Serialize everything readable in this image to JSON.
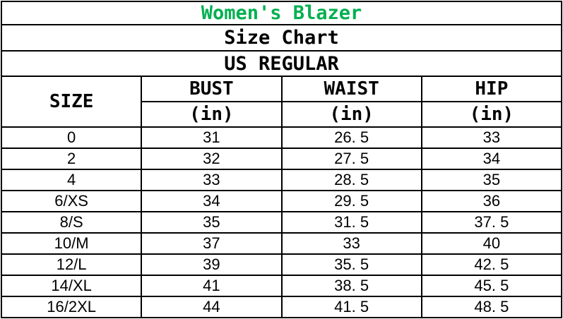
{
  "title": {
    "text": "Women's Blazer",
    "color": "#00B050"
  },
  "subtitle": "Size Chart",
  "standard": "US REGULAR",
  "table": {
    "size_header": "SIZE",
    "columns": [
      {
        "label": "BUST",
        "unit": "(in)"
      },
      {
        "label": "WAIST",
        "unit": "(in)"
      },
      {
        "label": "HIP",
        "unit": "(in)"
      }
    ],
    "rows": [
      {
        "size": "0",
        "bust": "31",
        "waist": "26. 5",
        "hip": "33"
      },
      {
        "size": "2",
        "bust": "32",
        "waist": "27. 5",
        "hip": "34"
      },
      {
        "size": "4",
        "bust": "33",
        "waist": "28. 5",
        "hip": "35"
      },
      {
        "size": "6/XS",
        "bust": "34",
        "waist": "29. 5",
        "hip": "36"
      },
      {
        "size": "8/S",
        "bust": "35",
        "waist": "31. 5",
        "hip": "37. 5"
      },
      {
        "size": "10/M",
        "bust": "37",
        "waist": "33",
        "hip": "40"
      },
      {
        "size": "12/L",
        "bust": "39",
        "waist": "35. 5",
        "hip": "42. 5"
      },
      {
        "size": "14/XL",
        "bust": "41",
        "waist": "38. 5",
        "hip": "45. 5"
      },
      {
        "size": "16/2XL",
        "bust": "44",
        "waist": "41. 5",
        "hip": "48. 5"
      }
    ]
  },
  "chart_data": {
    "type": "table",
    "title": "Women's Blazer",
    "subtitle": "Size Chart",
    "standard": "US REGULAR",
    "columns": [
      "SIZE",
      "BUST (in)",
      "WAIST (in)",
      "HIP (in)"
    ],
    "rows": [
      [
        "0",
        31,
        26.5,
        33
      ],
      [
        "2",
        32,
        27.5,
        34
      ],
      [
        "4",
        33,
        28.5,
        35
      ],
      [
        "6/XS",
        34,
        29.5,
        36
      ],
      [
        "8/S",
        35,
        31.5,
        37.5
      ],
      [
        "10/M",
        37,
        33,
        40
      ],
      [
        "12/L",
        39,
        35.5,
        42.5
      ],
      [
        "14/XL",
        41,
        38.5,
        45.5
      ],
      [
        "16/2XL",
        44,
        41.5,
        48.5
      ]
    ],
    "title_color": "#00B050",
    "grid": true
  }
}
